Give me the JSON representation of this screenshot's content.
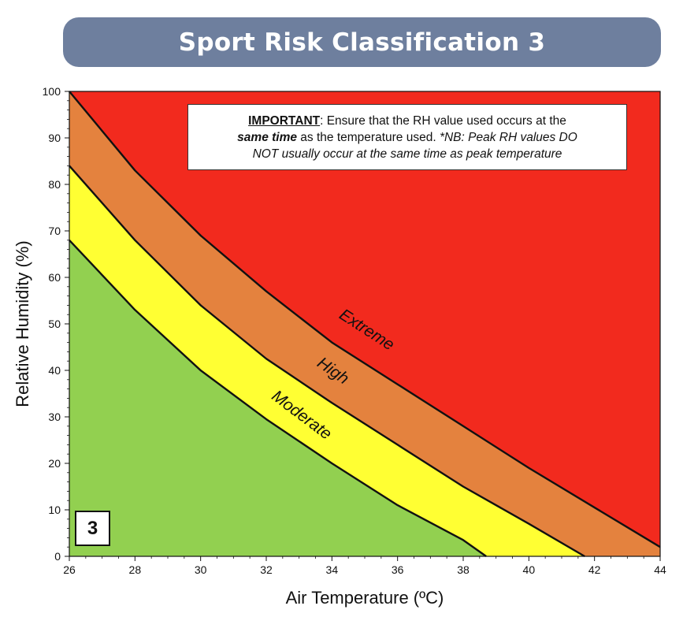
{
  "title": "Sport Risk Classification 3",
  "note": {
    "important": "IMPORTANT",
    "line1_rest": ": Ensure that the RH value used occurs at the",
    "same_time": "same time",
    "line2_mid": " as the temperature used. ",
    "line2_italic": "*NB: Peak RH values DO",
    "line3_italic": "NOT usually occur at the same time as peak temperature"
  },
  "class_label": "3",
  "colors": {
    "low": "#92d050",
    "moderate": "#ffff33",
    "high": "#e4823e",
    "extreme": "#f22a1e",
    "banner": "#6e7f9e"
  },
  "chart_data": {
    "type": "area",
    "xlabel": "Air Temperature (ºC)",
    "ylabel": "Relative Humidity (%)",
    "xlim": [
      26,
      44
    ],
    "ylim": [
      0,
      100
    ],
    "x_ticks": [
      26,
      28,
      30,
      32,
      34,
      36,
      38,
      40,
      42,
      44
    ],
    "y_ticks": [
      0,
      10,
      20,
      30,
      40,
      50,
      60,
      70,
      80,
      90,
      100
    ],
    "grid": false,
    "regions": [
      "Moderate",
      "High",
      "Extreme"
    ],
    "series": [
      {
        "name": "Moderate",
        "x": [
          26,
          28,
          30,
          32,
          34,
          36,
          38,
          38.7
        ],
        "y": [
          68,
          53,
          40,
          29.5,
          20,
          11,
          3.5,
          0
        ]
      },
      {
        "name": "High",
        "x": [
          26,
          28,
          30,
          32,
          34,
          36,
          38,
          40,
          41.7
        ],
        "y": [
          84,
          68,
          54,
          42.5,
          33,
          24,
          15,
          7,
          0
        ]
      },
      {
        "name": "Extreme",
        "x": [
          26,
          28,
          30,
          32,
          34,
          36,
          38,
          40,
          42,
          44
        ],
        "y": [
          100,
          83,
          69,
          57,
          46,
          37,
          28,
          19,
          10.5,
          2
        ]
      }
    ]
  }
}
